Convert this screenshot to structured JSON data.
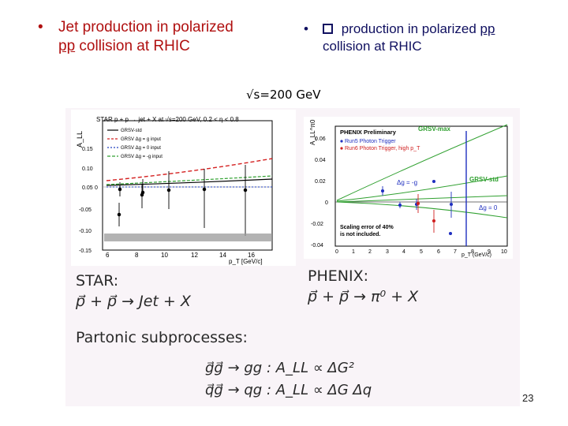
{
  "bullets": {
    "left_bullet": "•",
    "left_text_1": "Jet production in polarized",
    "left_text_pp": "pp",
    "left_text_2": " collision at RHIC",
    "right_bullet": "•",
    "right_text_1": " production in polarized ",
    "right_text_pp": "pp",
    "right_text_2": "collision at RHIC"
  },
  "energy_label": "√s=200 GeV",
  "star_plot": {
    "header": "STAR  p + p → jet + X at √s=200 GeV, 0.2 < η < 0.8",
    "ylabel": "A_LL",
    "xlabel": "p_T [GeV/c]",
    "legend": [
      "GRSV-std",
      "GRSV  Δg = g input",
      "GRSV  Δg = 0 input",
      "GRSV  Δg = -g input"
    ],
    "x_ticks": [
      "6",
      "8",
      "10",
      "12",
      "14",
      "16"
    ],
    "y_ticks": [
      "0.15",
      "0.10",
      "0.05",
      "0",
      "-0.05",
      "-0.10",
      "-0.15"
    ],
    "colors": {
      "std": "#000000",
      "max": "#d42020",
      "zero": "#2040c0",
      "min": "#30a030"
    }
  },
  "phenix_plot": {
    "header": "PHENIX Preliminary",
    "legend": [
      "Run5 Photon Trigger",
      "Run6 Photon Trigger, high p_T"
    ],
    "ylabel": "A_LL^π0",
    "xlabel": "p_T (GeV/c)",
    "curve_labels": {
      "max": "GRSV-max",
      "std": "GRSV-std",
      "minus": "Δg = -g",
      "zero": "Δg = 0"
    },
    "note_1": "Scaling error of 40%",
    "note_2": "is not included.",
    "x_ticks": [
      "0",
      "1",
      "2",
      "3",
      "4",
      "5",
      "6",
      "7",
      "8",
      "9",
      "10"
    ],
    "y_ticks": [
      "0.06",
      "0.04",
      "0.02",
      "0",
      "-0.02",
      "-0.04"
    ],
    "colors": {
      "run5": "#2030c0",
      "run6": "#d02020",
      "theory": "#30a030"
    }
  },
  "star_label": "STAR:",
  "star_process": "p⃗ + p⃗ → Jet + X",
  "phenix_label": "PHENIX:",
  "phenix_process": "p⃗ + p⃗ → π⁰ + X",
  "partonic_label": "Partonic subprocesses:",
  "subprocess_1": "g⃗g⃗  →  gg :   A_LL ∝ ΔG²",
  "subprocess_2": "q⃗g⃗  →  qg :   A_LL ∝ ΔG Δq",
  "page_number": "23"
}
